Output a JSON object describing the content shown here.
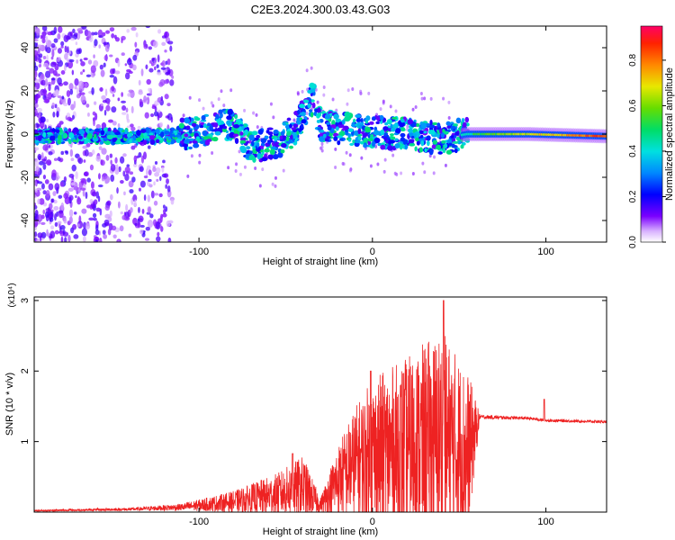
{
  "title": "C2E3.2024.300.03.43.G03",
  "chart_data": [
    {
      "type": "heatmap",
      "xlabel": "Height of straight line (km)",
      "ylabel": "Frequency (Hz)",
      "xlim": [
        -195,
        135
      ],
      "ylim": [
        -50,
        50
      ],
      "xticks": [
        -100,
        0,
        100
      ],
      "yticks": [
        -40,
        -20,
        0,
        20,
        40
      ],
      "colorbar": {
        "label": "Normalized spectral amplitude",
        "range": [
          0,
          0.95
        ],
        "ticks": [
          0.0,
          0.2,
          0.4,
          0.6,
          0.8
        ]
      },
      "ridge": [
        {
          "x": -195,
          "y": -1
        },
        {
          "x": -150,
          "y": -1
        },
        {
          "x": -120,
          "y": -1
        },
        {
          "x": -100,
          "y": 1
        },
        {
          "x": -85,
          "y": 5
        },
        {
          "x": -78,
          "y": 2
        },
        {
          "x": -70,
          "y": -6
        },
        {
          "x": -55,
          "y": -4
        },
        {
          "x": -45,
          "y": 2
        },
        {
          "x": -38,
          "y": 12
        },
        {
          "x": -34,
          "y": 17
        },
        {
          "x": -30,
          "y": 4
        },
        {
          "x": -20,
          "y": 3
        },
        {
          "x": 0,
          "y": 1
        },
        {
          "x": 20,
          "y": 0
        },
        {
          "x": 40,
          "y": -2
        },
        {
          "x": 55,
          "y": 0
        },
        {
          "x": 90,
          "y": 0
        },
        {
          "x": 135,
          "y": -1
        }
      ]
    },
    {
      "type": "line",
      "xlabel": "Height of straight line (km)",
      "ylabel": "SNR (10 * v/v)",
      "yscale_label": "(x10⁴)",
      "xlim": [
        -195,
        135
      ],
      "ylim": [
        0,
        3.05
      ],
      "xticks": [
        -100,
        0,
        100
      ],
      "yticks": [
        1,
        2,
        3
      ],
      "color": "#ee2222",
      "envelope": [
        {
          "x": -195,
          "base": 0.02,
          "amp": 0.01
        },
        {
          "x": -140,
          "base": 0.04,
          "amp": 0.02
        },
        {
          "x": -110,
          "base": 0.07,
          "amp": 0.05
        },
        {
          "x": -80,
          "base": 0.15,
          "amp": 0.15
        },
        {
          "x": -55,
          "base": 0.25,
          "amp": 0.3
        },
        {
          "x": -40,
          "base": 0.35,
          "amp": 0.45
        },
        {
          "x": -30,
          "base": 0.1,
          "amp": 0.1
        },
        {
          "x": -20,
          "base": 0.45,
          "amp": 0.5
        },
        {
          "x": -10,
          "base": 0.7,
          "amp": 0.8
        },
        {
          "x": 0,
          "base": 0.8,
          "amp": 1.1
        },
        {
          "x": 20,
          "base": 0.9,
          "amp": 1.3
        },
        {
          "x": 40,
          "base": 1.0,
          "amp": 1.6
        },
        {
          "x": 55,
          "base": 0.8,
          "amp": 1.2
        },
        {
          "x": 62,
          "base": 1.35,
          "amp": 0.03
        },
        {
          "x": 90,
          "base": 1.33,
          "amp": 0.02
        },
        {
          "x": 100,
          "base": 1.3,
          "amp": 0.02
        },
        {
          "x": 135,
          "base": 1.28,
          "amp": 0.02
        }
      ],
      "spikes": [
        {
          "x": 41,
          "y": 3.0
        },
        {
          "x": -46,
          "y": 0.83
        },
        {
          "x": -1,
          "y": 2.0
        },
        {
          "x": 99,
          "y": 1.6
        }
      ]
    }
  ]
}
